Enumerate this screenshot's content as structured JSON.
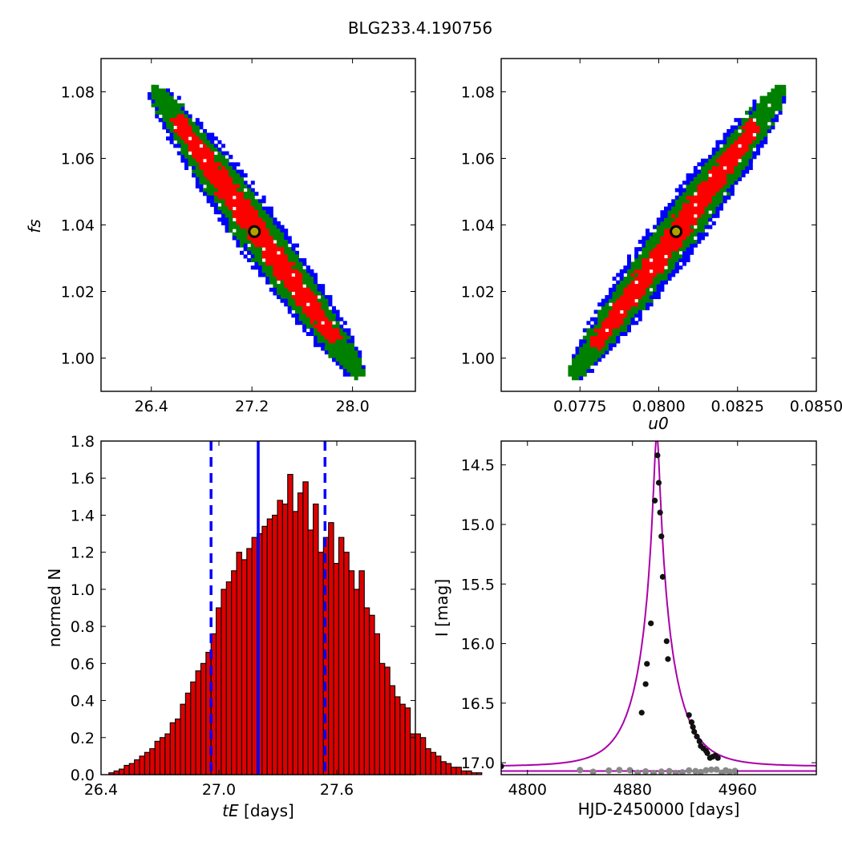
{
  "figure": {
    "title": "BLG233.4.190756"
  },
  "colors": {
    "outer": "#0000ff",
    "middle": "#008000",
    "inner": "#ff0000",
    "marker_face": "#b3a000",
    "hist_bar": "#dd0000",
    "hist_line": "#0000ff",
    "model": "#aa00aa",
    "data_black": "#111111",
    "data_grey": "#888888"
  },
  "chart_data": [
    {
      "id": "tE_vs_fs",
      "type": "heatmap",
      "title": "",
      "xlabel": "",
      "ylabel": "f_s",
      "ylabel_display": "fs",
      "xlim": [
        26.0,
        28.5
      ],
      "ylim": [
        0.99,
        1.09
      ],
      "xticks": [
        26.4,
        27.2,
        28.0
      ],
      "xtick_labels": [
        "26.4",
        "27.2",
        "28.0"
      ],
      "yticks": [
        1.0,
        1.02,
        1.04,
        1.06,
        1.08
      ],
      "ytick_labels": [
        "1.00",
        "1.02",
        "1.04",
        "1.06",
        "1.08"
      ],
      "trend": {
        "start": [
          26.4,
          1.082
        ],
        "end": [
          28.05,
          0.995
        ]
      },
      "levels": [
        "outer",
        "middle",
        "inner"
      ],
      "best_fit": {
        "x": 27.22,
        "y": 1.038
      }
    },
    {
      "id": "u0_vs_fs",
      "type": "heatmap",
      "title": "",
      "xlabel": "u_0",
      "xlabel_display": "u0",
      "ylabel": "",
      "xlim": [
        0.075,
        0.085
      ],
      "ylim": [
        0.99,
        1.09
      ],
      "xticks": [
        0.0775,
        0.08,
        0.0825,
        0.085
      ],
      "xtick_labels": [
        "0.0775",
        "0.0800",
        "0.0825",
        "0.0850"
      ],
      "yticks": [
        1.0,
        1.02,
        1.04,
        1.06,
        1.08
      ],
      "ytick_labels": [
        "1.00",
        "1.02",
        "1.04",
        "1.06",
        "1.08"
      ],
      "trend": {
        "start": [
          0.0772,
          0.995
        ],
        "end": [
          0.0839,
          1.082
        ]
      },
      "levels": [
        "outer",
        "middle",
        "inner"
      ],
      "best_fit": {
        "x": 0.08055,
        "y": 1.038
      }
    },
    {
      "id": "tE_histogram",
      "type": "bar",
      "title": "",
      "xlabel": "t_E [days]",
      "xlabel_display": [
        "tE",
        " [days]"
      ],
      "ylabel": "normed N",
      "xlim": [
        26.4,
        28.0
      ],
      "ylim": [
        0.0,
        1.8
      ],
      "xticks": [
        26.4,
        27.0,
        27.6
      ],
      "xtick_labels": [
        "26.4",
        "27.0",
        "27.6"
      ],
      "yticks": [
        0.0,
        0.2,
        0.4,
        0.6,
        0.8,
        1.0,
        1.2,
        1.4,
        1.6,
        1.8
      ],
      "ytick_labels": [
        "0.0",
        "0.2",
        "0.4",
        "0.6",
        "0.8",
        "1.0",
        "1.2",
        "1.4",
        "1.6",
        "1.8"
      ],
      "bin_start": 26.44,
      "bin_width": 0.026,
      "values": [
        0.01,
        0.02,
        0.03,
        0.05,
        0.06,
        0.08,
        0.1,
        0.12,
        0.14,
        0.18,
        0.2,
        0.22,
        0.28,
        0.3,
        0.38,
        0.44,
        0.5,
        0.56,
        0.6,
        0.66,
        0.76,
        0.9,
        1.0,
        1.04,
        1.1,
        1.2,
        1.16,
        1.22,
        1.28,
        1.3,
        1.34,
        1.38,
        1.4,
        1.48,
        1.46,
        1.62,
        1.42,
        1.52,
        1.58,
        1.32,
        1.46,
        1.2,
        1.28,
        1.36,
        1.14,
        1.28,
        1.2,
        1.1,
        1.0,
        1.1,
        0.9,
        0.86,
        0.76,
        0.6,
        0.58,
        0.48,
        0.42,
        0.38,
        0.36,
        0.22,
        0.22,
        0.2,
        0.14,
        0.12,
        0.1,
        0.07,
        0.06,
        0.04,
        0.04,
        0.02,
        0.02,
        0.01,
        0.01
      ],
      "median": 27.2,
      "lower": 26.96,
      "upper": 27.54
    },
    {
      "id": "light_curve",
      "type": "line",
      "title": "",
      "xlabel": "HJD-2450000 [days]",
      "ylabel": "I [mag]",
      "xlim": [
        4780,
        5020
      ],
      "ylim": [
        17.1,
        14.3
      ],
      "xticks": [
        4800,
        4880,
        4960
      ],
      "xtick_labels": [
        "4800",
        "4880",
        "4960"
      ],
      "yticks": [
        14.5,
        15.0,
        15.5,
        16.0,
        16.5,
        17.0
      ],
      "ytick_labels": [
        "14.5",
        "15.0",
        "15.5",
        "16.0",
        "16.5",
        "17.0"
      ],
      "model": {
        "t0": 4898.5,
        "tE": 27.2,
        "u0": 0.0805,
        "baseline": 17.03,
        "fs": 1.038
      },
      "residual_level": 17.07,
      "data_points": [
        {
          "x": 4780,
          "y": 17.03
        },
        {
          "x": 4887,
          "y": 16.58
        },
        {
          "x": 4890,
          "y": 16.34
        },
        {
          "x": 4891,
          "y": 16.17
        },
        {
          "x": 4894,
          "y": 15.83
        },
        {
          "x": 4897,
          "y": 14.8
        },
        {
          "x": 4898.5,
          "y": 14.28
        },
        {
          "x": 4899,
          "y": 14.42
        },
        {
          "x": 4900,
          "y": 14.65
        },
        {
          "x": 4901,
          "y": 14.9
        },
        {
          "x": 4902,
          "y": 15.1
        },
        {
          "x": 4903,
          "y": 15.44
        },
        {
          "x": 4906,
          "y": 15.98
        },
        {
          "x": 4907,
          "y": 16.13
        },
        {
          "x": 4923,
          "y": 16.6
        },
        {
          "x": 4925,
          "y": 16.66
        },
        {
          "x": 4926,
          "y": 16.7
        },
        {
          "x": 4927,
          "y": 16.74
        },
        {
          "x": 4929,
          "y": 16.78
        },
        {
          "x": 4931,
          "y": 16.82
        },
        {
          "x": 4932,
          "y": 16.86
        },
        {
          "x": 4934,
          "y": 16.88
        },
        {
          "x": 4936,
          "y": 16.9
        },
        {
          "x": 4937,
          "y": 16.92
        },
        {
          "x": 4939,
          "y": 16.96
        },
        {
          "x": 4941,
          "y": 16.95
        },
        {
          "x": 4943,
          "y": 16.94
        },
        {
          "x": 4945,
          "y": 16.96
        }
      ],
      "residual_points": [
        4840,
        4850,
        4862,
        4870,
        4878,
        4884,
        4890,
        4896,
        4902,
        4908,
        4913,
        4918,
        4923,
        4928,
        4932,
        4936,
        4940,
        4944,
        4948,
        4951,
        4954,
        4958
      ]
    }
  ]
}
